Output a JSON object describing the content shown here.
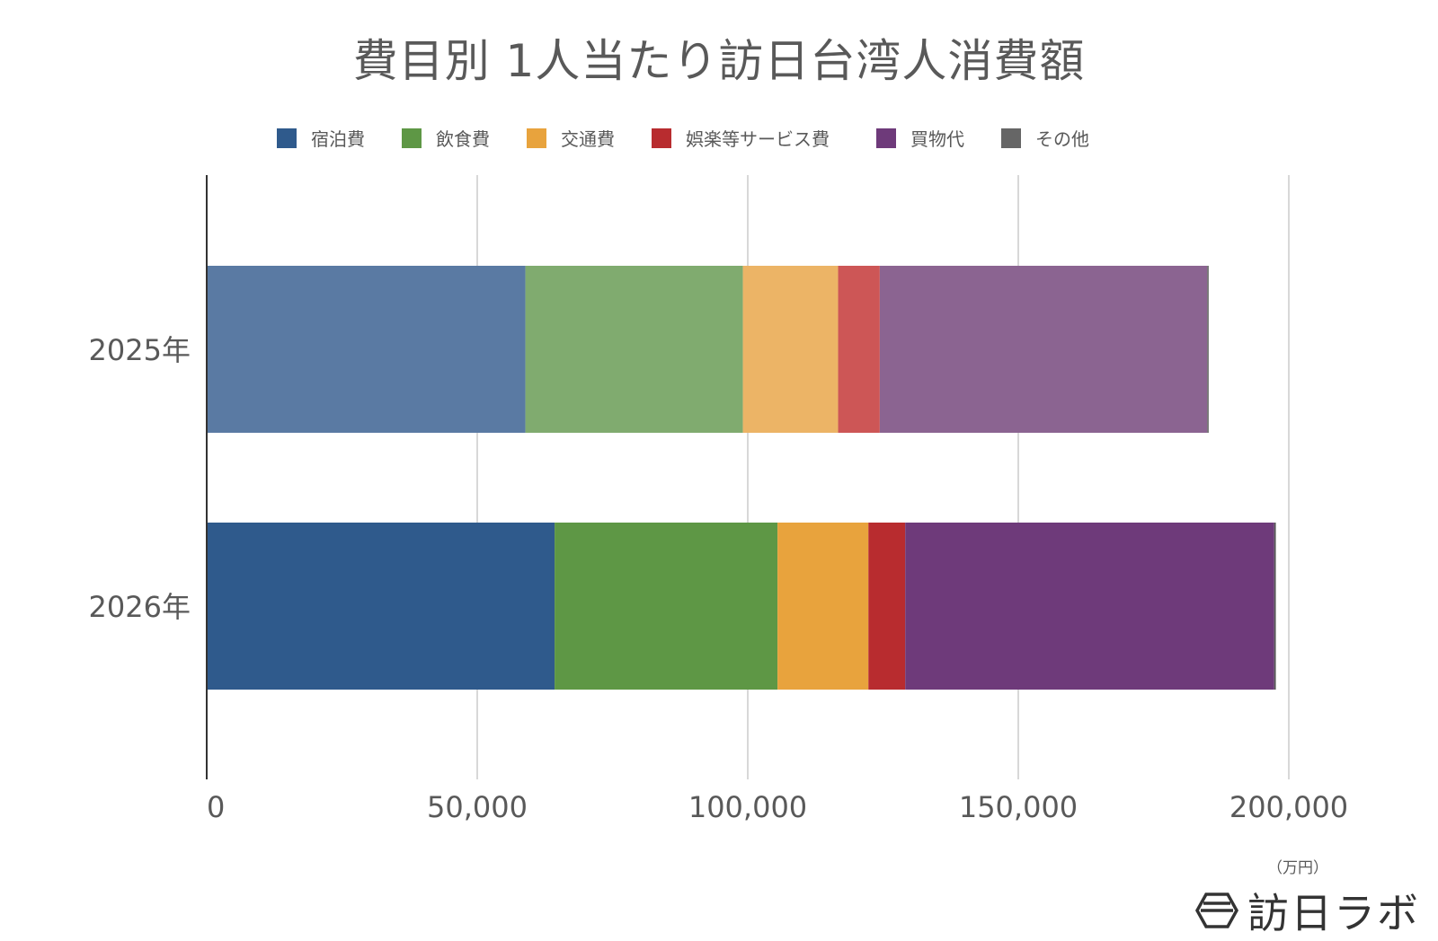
{
  "title": "費目別 1人当たり訪日台湾人消費額",
  "unit_label": "（万円）",
  "logo_text": "訪日ラボ",
  "logo_icon": "hexagon-logo-icon",
  "chart_data": {
    "type": "bar",
    "orientation": "horizontal",
    "stacked": true,
    "categories": [
      "2025年",
      "2026年"
    ],
    "series": [
      {
        "name": "宿泊費",
        "values": [
          58900,
          64300
        ]
      },
      {
        "name": "飲食費",
        "values": [
          40200,
          41200
        ]
      },
      {
        "name": "交通費",
        "values": [
          17600,
          16800
        ]
      },
      {
        "name": "娯楽等サービス費",
        "values": [
          7700,
          6800
        ]
      },
      {
        "name": "買物代",
        "values": [
          60500,
          68200
        ]
      },
      {
        "name": "その他",
        "values": [
          300,
          300
        ]
      }
    ],
    "colors_2025": [
      "#5a7aa3",
      "#80ab6f",
      "#ecb466",
      "#cd5656",
      "#8b6491",
      "#6e6e6e"
    ],
    "colors_2026": [
      "#2f5a8c",
      "#5e9745",
      "#e8a33d",
      "#b82c2f",
      "#6e3a7a",
      "#555555"
    ],
    "legend_colors": [
      "#2f5a8c",
      "#5e9745",
      "#e8a33d",
      "#b82c2f",
      "#6e3a7a",
      "#666666"
    ],
    "xlim": [
      0,
      200000
    ],
    "xticks": [
      0,
      50000,
      100000,
      150000,
      200000
    ],
    "xtick_labels": [
      "0",
      "50,000",
      "100,000",
      "150,000",
      "200,000"
    ],
    "grid": true,
    "legend_position": "top"
  }
}
